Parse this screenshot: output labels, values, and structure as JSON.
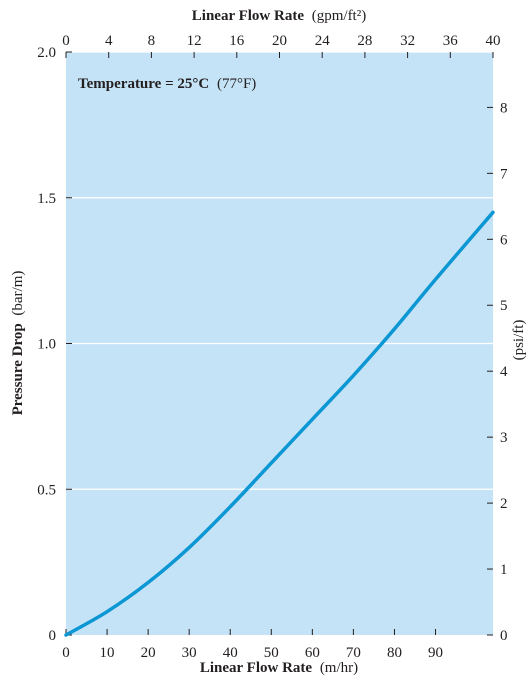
{
  "chart_data": {
    "type": "line",
    "annotation": {
      "bold": "Temperature = 25°C",
      "normal": "(77°F)"
    },
    "x_bottom": {
      "label_bold": "Linear Flow Rate",
      "label_unit": "(m/hr)",
      "range": [
        0,
        104
      ],
      "ticks": [
        "0",
        "10",
        "20",
        "30",
        "40",
        "50",
        "60",
        "70",
        "80",
        "90"
      ],
      "tick_values": [
        0,
        10,
        20,
        30,
        40,
        50,
        60,
        70,
        80,
        90
      ]
    },
    "x_top": {
      "label_bold": "Linear Flow Rate",
      "label_unit": "(gpm/ft²)",
      "range": [
        0,
        40
      ],
      "ticks": [
        "0",
        "4",
        "8",
        "12",
        "16",
        "20",
        "24",
        "28",
        "32",
        "36",
        "40"
      ],
      "tick_values": [
        0,
        4,
        8,
        12,
        16,
        20,
        24,
        28,
        32,
        36,
        40
      ]
    },
    "y_left": {
      "label_bold": "Pressure Drop",
      "label_unit": "(bar/m)",
      "range": [
        0,
        2.0
      ],
      "ticks": [
        "0",
        "0.5",
        "1.0",
        "1.5",
        "2.0"
      ],
      "tick_values": [
        0,
        0.5,
        1.0,
        1.5,
        2.0
      ]
    },
    "y_right": {
      "label_unit": "(psi/ft)",
      "range": [
        0,
        8.84
      ],
      "ticks": [
        "0",
        "1",
        "2",
        "3",
        "4",
        "5",
        "6",
        "7",
        "8"
      ],
      "tick_values": [
        0,
        1,
        2,
        3,
        4,
        5,
        6,
        7,
        8
      ]
    },
    "grid": "horizontal",
    "series": [
      {
        "x": [
          0,
          10,
          20,
          30,
          40,
          50,
          60,
          70,
          80,
          90,
          104
        ],
        "y": [
          0,
          0.08,
          0.18,
          0.3,
          0.44,
          0.59,
          0.74,
          0.89,
          1.05,
          1.22,
          1.45
        ]
      }
    ],
    "colors": {
      "plot_background": "#c5e3f6",
      "line": "#0b96d4",
      "grid": "#ffffff",
      "text": "#231f20"
    }
  }
}
